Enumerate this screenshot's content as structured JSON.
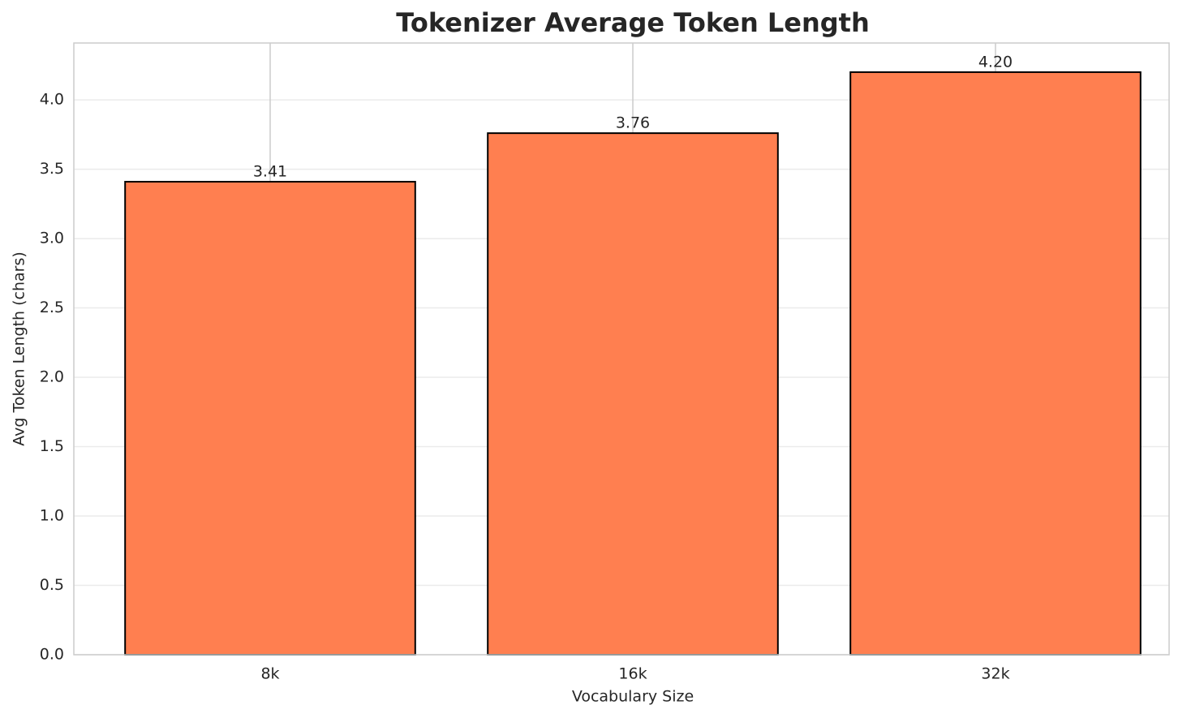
{
  "chart_data": {
    "type": "bar",
    "title": "Tokenizer Average Token Length",
    "xlabel": "Vocabulary Size",
    "ylabel": "Avg Token Length (chars)",
    "categories": [
      "8k",
      "16k",
      "32k"
    ],
    "values": [
      3.41,
      3.76,
      4.2
    ],
    "value_labels": [
      "3.41",
      "3.76",
      "4.20"
    ],
    "color": "#ff7f50",
    "edgecolor": "#000000",
    "ylim": [
      0,
      4.41
    ],
    "yticks": [
      {
        "value": 0,
        "label": "0.0"
      },
      0.5,
      {
        "value": 1,
        "label": "1.0"
      },
      1.5,
      {
        "value": 2,
        "label": "2.0"
      },
      2.5,
      {
        "value": 3,
        "label": "3.0"
      },
      3.5,
      {
        "value": 4,
        "label": "4.0"
      }
    ],
    "grid": true
  }
}
